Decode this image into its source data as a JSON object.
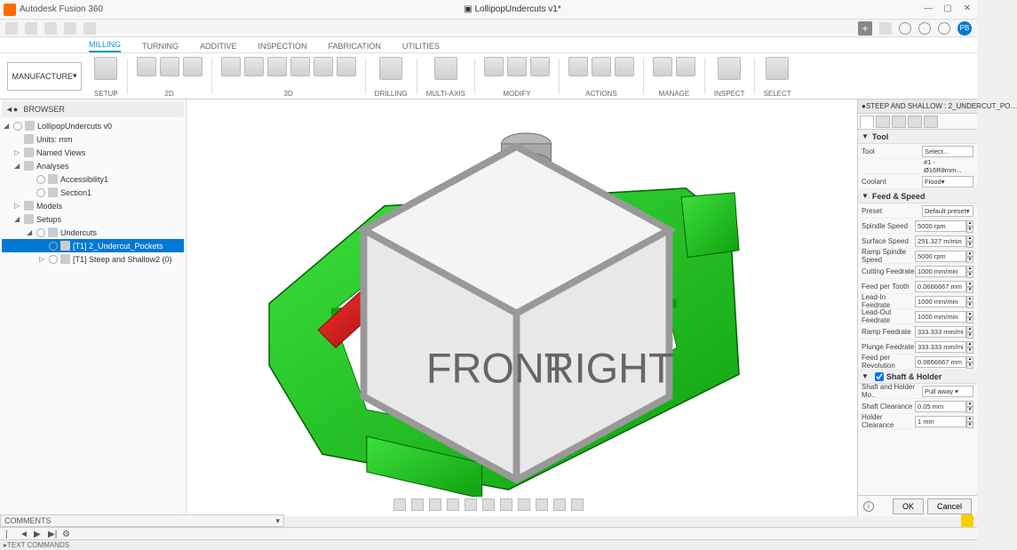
{
  "app": {
    "name": "Autodesk Fusion 360",
    "document": "LollipopUndercuts v1*",
    "avatar": "PB"
  },
  "workspace": "MANUFACTURE",
  "ribbonTabs": [
    "MILLING",
    "TURNING",
    "ADDITIVE",
    "INSPECTION",
    "FABRICATION",
    "UTILITIES"
  ],
  "ribbonActiveTab": 0,
  "ribbonGroups": [
    "SETUP",
    "2D",
    "3D",
    "DRILLING",
    "MULTI-AXIS",
    "MODIFY",
    "ACTIONS",
    "MANAGE",
    "INSPECT",
    "SELECT"
  ],
  "browser": {
    "title": "BROWSER",
    "root": "LollipopUndercuts v0",
    "units": "Units: mm",
    "namedViews": "Named Views",
    "analyses": "Analyses",
    "accessibility": "Accessibility1",
    "section": "Section1",
    "models": "Models",
    "setups": "Setups",
    "setup1": "Undercuts",
    "op1": "[T1] 2_Undercut_Pockets",
    "op2": "[T1] Steep and Shallow2 (0)"
  },
  "panel": {
    "title": "STEEP AND SHALLOW : 2_UNDERCUT_PO…",
    "sections": {
      "tool": "Tool",
      "feedSpeed": "Feed & Speed",
      "shaftHolder": "Shaft & Holder"
    },
    "tool": {
      "label": "Tool",
      "select": "Select...",
      "current": "#1 - Ø16R8mm..."
    },
    "coolant": {
      "label": "Coolant",
      "value": "Flood"
    },
    "preset": {
      "label": "Preset",
      "value": "Default preset"
    },
    "fields": [
      {
        "label": "Spindle Speed",
        "value": "5000 rpm"
      },
      {
        "label": "Surface Speed",
        "value": "251.327 m/min"
      },
      {
        "label": "Ramp Spindle Speed",
        "value": "5000 rpm"
      },
      {
        "label": "Cutting Feedrate",
        "value": "1000 mm/min"
      },
      {
        "label": "Feed per Tooth",
        "value": "0.0666667 mm"
      },
      {
        "label": "Lead-In Feedrate",
        "value": "1000 mm/min"
      },
      {
        "label": "Lead-Out Feedrate",
        "value": "1000 mm/min"
      },
      {
        "label": "Ramp Feedrate",
        "value": "333.333 mm/mi"
      },
      {
        "label": "Plunge Feedrate",
        "value": "333.333 mm/mi"
      },
      {
        "label": "Feed per Revolution",
        "value": "0.0666667 mm"
      }
    ],
    "shaft": [
      {
        "label": "Shaft and Holder Mo..",
        "value": "Pull away"
      },
      {
        "label": "Shaft Clearance",
        "value": "0.05 mm"
      },
      {
        "label": "Holder Clearance",
        "value": "1 mm"
      }
    ],
    "ok": "OK",
    "cancel": "Cancel"
  },
  "comments": "COMMENTS",
  "textCommands": "TEXT COMMANDS",
  "colors": {
    "partGreen": "#1ec71e",
    "partGreenDark": "#0fa00f",
    "undercutRed": "#e02020",
    "undercutRedDark": "#a01010",
    "toolGray": "#999999",
    "toolGrayDark": "#707070",
    "canvasBg": "#ffffff"
  }
}
